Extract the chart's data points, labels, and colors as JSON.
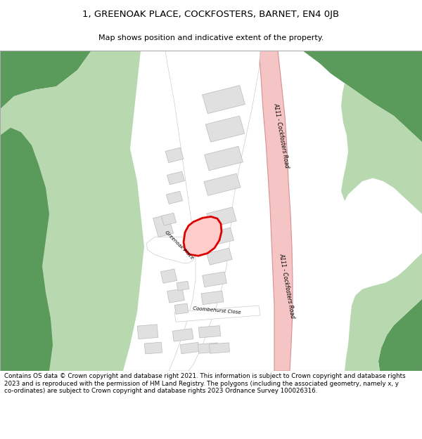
{
  "title_line1": "1, GREENOAK PLACE, COCKFOSTERS, BARNET, EN4 0JB",
  "title_line2": "Map shows position and indicative extent of the property.",
  "footer_text": "Contains OS data © Crown copyright and database right 2021. This information is subject to Crown copyright and database rights 2023 and is reproduced with the permission of HM Land Registry. The polygons (including the associated geometry, namely x, y co-ordinates) are subject to Crown copyright and database rights 2023 Ordnance Survey 100026316.",
  "bg_color": "#ffffff",
  "map_bg": "#ffffff",
  "road_color": "#f5c4c4",
  "road_border": "#d99090",
  "green_dark": "#5a9a5a",
  "green_light": "#b8d8b0",
  "building_color": "#e0e0e0",
  "building_border": "#bbbbbb",
  "plot_fill": "#ffcccc",
  "plot_border": "#dd0000",
  "road_label": "A111 - Cockfosters Road",
  "street_label1": "Greenoak Place",
  "street_label2": "Coombehurst Close"
}
